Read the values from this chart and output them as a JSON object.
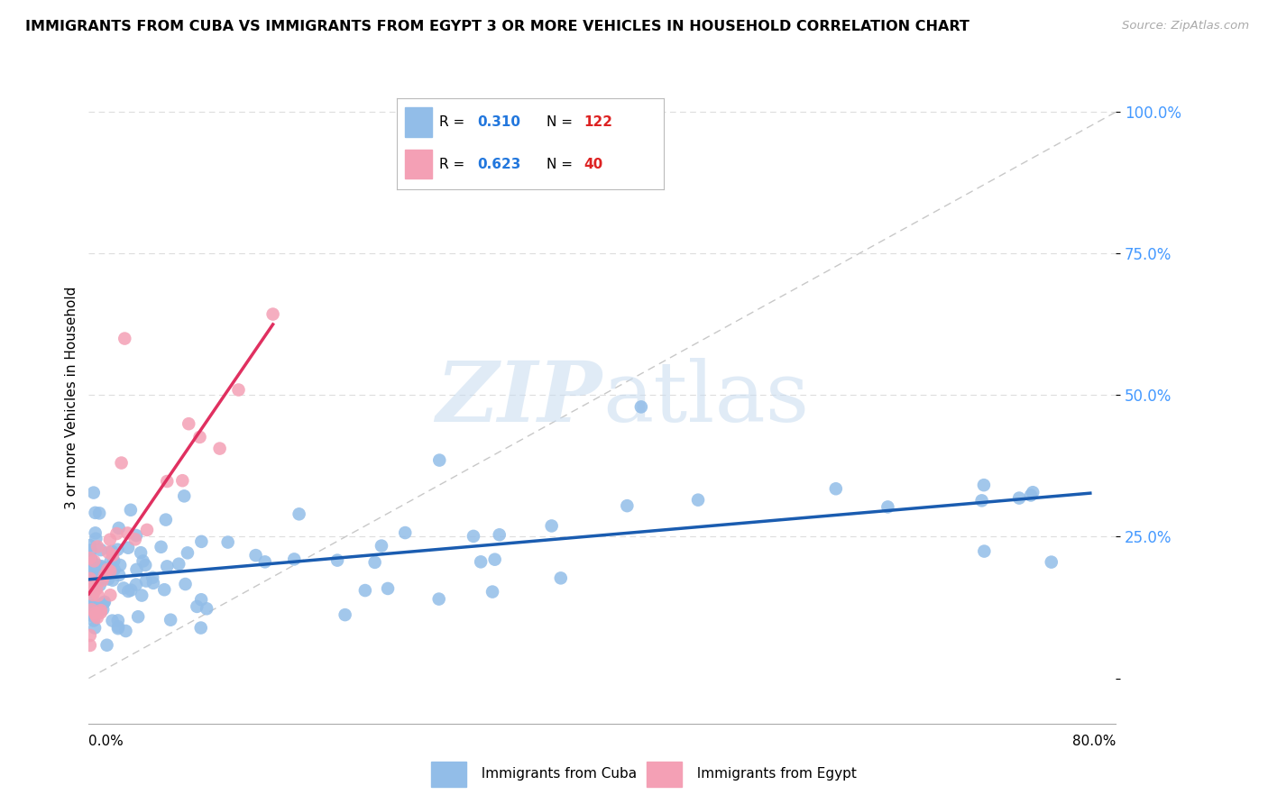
{
  "title": "IMMIGRANTS FROM CUBA VS IMMIGRANTS FROM EGYPT 3 OR MORE VEHICLES IN HOUSEHOLD CORRELATION CHART",
  "source": "Source: ZipAtlas.com",
  "ylabel": "3 or more Vehicles in Household",
  "y_ticks": [
    0.0,
    0.25,
    0.5,
    0.75,
    1.0
  ],
  "y_tick_labels": [
    "",
    "25.0%",
    "50.0%",
    "75.0%",
    "100.0%"
  ],
  "x_min": 0.0,
  "x_max": 0.8,
  "y_min": -0.08,
  "y_max": 1.07,
  "cuba_color": "#92BDE8",
  "egypt_color": "#F4A0B5",
  "cuba_line_color": "#1A5CB0",
  "egypt_line_color": "#E03060",
  "diag_line_color": "#C8C8C8",
  "cuba_R": 0.31,
  "cuba_N": 122,
  "egypt_R": 0.623,
  "egypt_N": 40,
  "watermark_zip": "ZIP",
  "watermark_atlas": "atlas",
  "legend_R_color": "#2277DD",
  "legend_N_color": "#DD2222",
  "tick_color": "#4499FF",
  "grid_color": "#DDDDDD"
}
